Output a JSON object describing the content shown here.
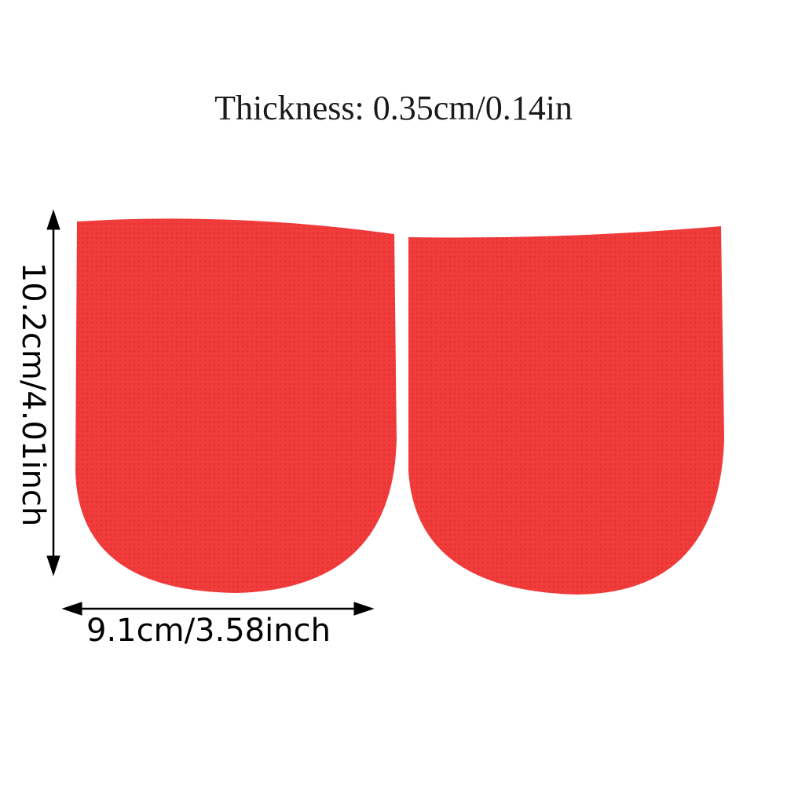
{
  "title": "Thickness: 0.35cm/0.14in",
  "height_label": "10.2cm/4.01inch",
  "width_label": "9.1cm/3.58inch",
  "product_color": "#f13c3c",
  "icons": [
    "height-arrow-icon",
    "width-arrow-icon"
  ]
}
